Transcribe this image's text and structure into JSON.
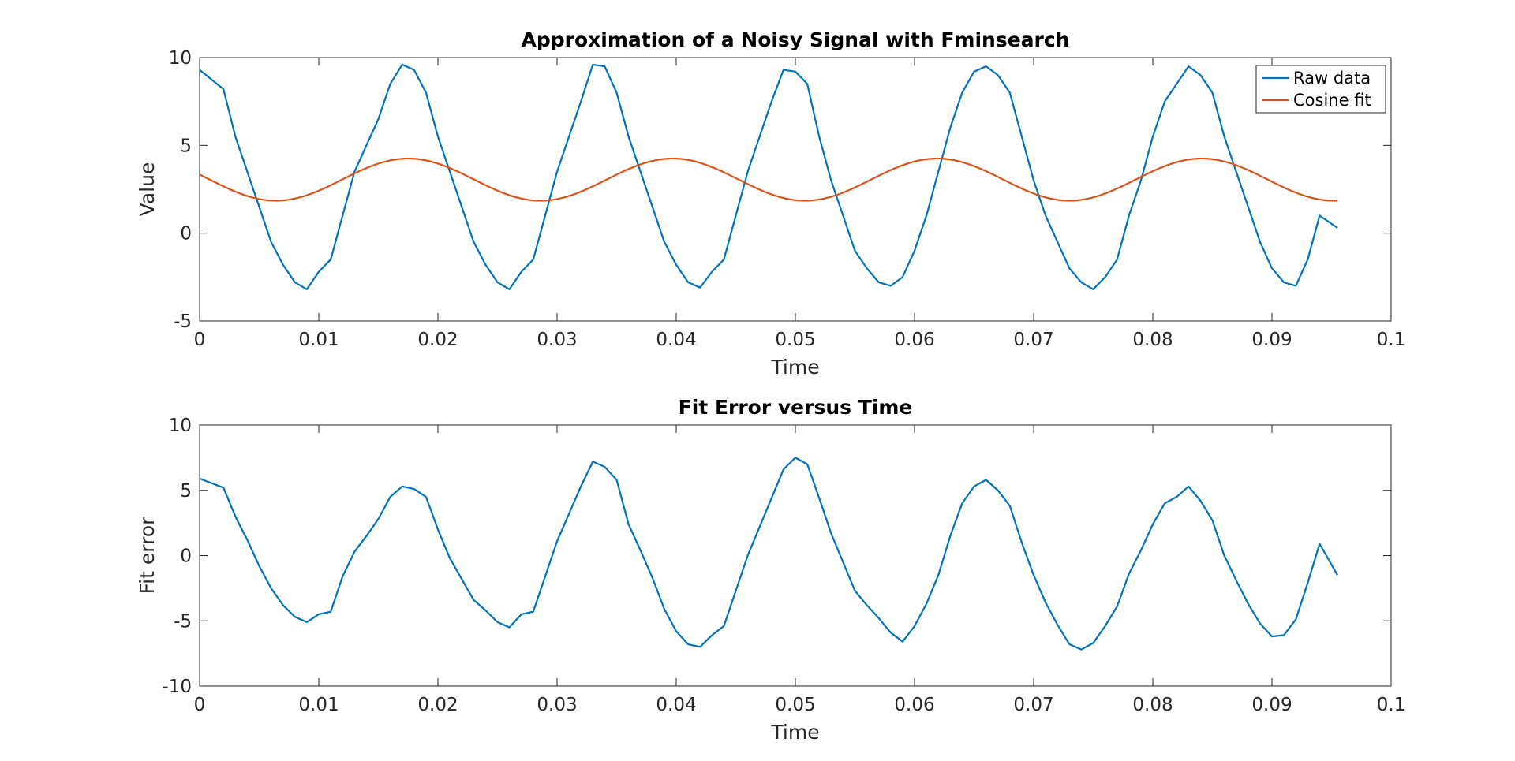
{
  "chart_data": [
    {
      "type": "line",
      "title": "Approximation of a Noisy Signal with Fminsearch",
      "xlabel": "Time",
      "ylabel": "Value",
      "xlim": [
        0,
        0.1
      ],
      "ylim": [
        -5,
        10
      ],
      "xticks": [
        0,
        0.01,
        0.02,
        0.03,
        0.04,
        0.05,
        0.06,
        0.07,
        0.08,
        0.09,
        0.1
      ],
      "xtick_labels": [
        "0",
        "0.01",
        "0.02",
        "0.03",
        "0.04",
        "0.05",
        "0.06",
        "0.07",
        "0.08",
        "0.09",
        "0.1"
      ],
      "yticks": [
        -5,
        0,
        5,
        10
      ],
      "ytick_labels": [
        "-5",
        "0",
        "5",
        "10"
      ],
      "grid": false,
      "legend": "top-right",
      "series": [
        {
          "name": "Raw data",
          "color": "#0072BD",
          "x": [
            0,
            0.002,
            0.003,
            0.004,
            0.005,
            0.006,
            0.007,
            0.008,
            0.009,
            0.01,
            0.011,
            0.012,
            0.013,
            0.014,
            0.015,
            0.016,
            0.017,
            0.018,
            0.019,
            0.02,
            0.021,
            0.022,
            0.023,
            0.024,
            0.025,
            0.026,
            0.027,
            0.028,
            0.029,
            0.03,
            0.031,
            0.032,
            0.033,
            0.034,
            0.035,
            0.036,
            0.037,
            0.038,
            0.039,
            0.04,
            0.041,
            0.042,
            0.043,
            0.044,
            0.045,
            0.046,
            0.047,
            0.048,
            0.049,
            0.05,
            0.051,
            0.052,
            0.053,
            0.054,
            0.055,
            0.056,
            0.057,
            0.058,
            0.059,
            0.06,
            0.061,
            0.062,
            0.063,
            0.064,
            0.065,
            0.066,
            0.067,
            0.068,
            0.069,
            0.07,
            0.071,
            0.072,
            0.073,
            0.074,
            0.075,
            0.076,
            0.077,
            0.078,
            0.079,
            0.08,
            0.081,
            0.082,
            0.083,
            0.084,
            0.085,
            0.086,
            0.087,
            0.088,
            0.089,
            0.09,
            0.091,
            0.092,
            0.093,
            0.094,
            0.0955
          ],
          "values": [
            9.3,
            8.2,
            5.5,
            3.5,
            1.5,
            -0.5,
            -1.8,
            -2.8,
            -3.2,
            -2.2,
            -1.5,
            1.0,
            3.5,
            5.0,
            6.5,
            8.5,
            9.6,
            9.3,
            8.0,
            5.5,
            3.5,
            1.5,
            -0.5,
            -1.8,
            -2.8,
            -3.2,
            -2.2,
            -1.5,
            1.0,
            3.5,
            5.5,
            7.5,
            9.6,
            9.5,
            8.0,
            5.5,
            3.5,
            1.5,
            -0.5,
            -1.8,
            -2.8,
            -3.1,
            -2.2,
            -1.5,
            1.0,
            3.5,
            5.5,
            7.5,
            9.3,
            9.2,
            8.5,
            5.5,
            3.0,
            1.0,
            -1.0,
            -2.0,
            -2.8,
            -3.0,
            -2.5,
            -1.0,
            1.0,
            3.5,
            6.0,
            8.0,
            9.2,
            9.5,
            9.0,
            8.0,
            5.5,
            3.0,
            1.0,
            -0.5,
            -2.0,
            -2.8,
            -3.2,
            -2.5,
            -1.5,
            1.0,
            3.0,
            5.5,
            7.5,
            8.5,
            9.5,
            9.0,
            8.0,
            5.5,
            3.5,
            1.5,
            -0.5,
            -2.0,
            -2.8,
            -3.0,
            -1.5,
            1.0,
            0.3
          ]
        },
        {
          "name": "Cosine fit",
          "color": "#D95319",
          "model": {
            "offset": 3.05,
            "amplitude": 1.2,
            "period": 0.0222,
            "peak_time": 0.0175
          },
          "x_range": [
            0,
            0.0955
          ]
        }
      ]
    },
    {
      "type": "line",
      "title": "Fit Error versus Time",
      "xlabel": "Time",
      "ylabel": "Fit error",
      "xlim": [
        0,
        0.1
      ],
      "ylim": [
        -10,
        10
      ],
      "xticks": [
        0,
        0.01,
        0.02,
        0.03,
        0.04,
        0.05,
        0.06,
        0.07,
        0.08,
        0.09,
        0.1
      ],
      "xtick_labels": [
        "0",
        "0.01",
        "0.02",
        "0.03",
        "0.04",
        "0.05",
        "0.06",
        "0.07",
        "0.08",
        "0.09",
        "0.1"
      ],
      "yticks": [
        -10,
        -5,
        0,
        5,
        10
      ],
      "ytick_labels": [
        "-10",
        "-5",
        "0",
        "5",
        "10"
      ],
      "grid": false,
      "series": [
        {
          "color": "#0072BD",
          "x": [
            0,
            0.002,
            0.003,
            0.004,
            0.005,
            0.006,
            0.007,
            0.008,
            0.009,
            0.01,
            0.011,
            0.012,
            0.013,
            0.014,
            0.015,
            0.016,
            0.017,
            0.018,
            0.019,
            0.02,
            0.021,
            0.022,
            0.023,
            0.024,
            0.025,
            0.026,
            0.027,
            0.028,
            0.029,
            0.03,
            0.031,
            0.032,
            0.033,
            0.034,
            0.035,
            0.036,
            0.037,
            0.038,
            0.039,
            0.04,
            0.041,
            0.042,
            0.043,
            0.044,
            0.045,
            0.046,
            0.047,
            0.048,
            0.049,
            0.05,
            0.051,
            0.052,
            0.053,
            0.054,
            0.055,
            0.056,
            0.057,
            0.058,
            0.059,
            0.06,
            0.061,
            0.062,
            0.063,
            0.064,
            0.065,
            0.066,
            0.067,
            0.068,
            0.069,
            0.07,
            0.071,
            0.072,
            0.073,
            0.074,
            0.075,
            0.076,
            0.077,
            0.078,
            0.079,
            0.08,
            0.081,
            0.082,
            0.083,
            0.084,
            0.085,
            0.086,
            0.087,
            0.088,
            0.089,
            0.09,
            0.091,
            0.092,
            0.093,
            0.094,
            0.0955
          ],
          "values": [
            5.9,
            5.2,
            3.0,
            1.2,
            -0.8,
            -2.5,
            -3.8,
            -4.7,
            -5.1,
            -4.5,
            -4.3,
            -1.6,
            0.3,
            1.5,
            2.8,
            4.5,
            5.3,
            5.1,
            4.5,
            2.0,
            -0.2,
            -1.8,
            -3.4,
            -4.2,
            -5.1,
            -5.5,
            -4.5,
            -4.3,
            -1.6,
            1.1,
            3.2,
            5.3,
            7.2,
            6.8,
            5.8,
            2.4,
            0.4,
            -1.7,
            -4.1,
            -5.8,
            -6.8,
            -7.0,
            -6.1,
            -5.4,
            -2.7,
            0.0,
            2.2,
            4.4,
            6.6,
            7.5,
            7.0,
            4.4,
            1.7,
            -0.5,
            -2.7,
            -3.8,
            -4.8,
            -5.9,
            -6.6,
            -5.4,
            -3.7,
            -1.5,
            1.5,
            4.0,
            5.3,
            5.8,
            5.0,
            3.8,
            1.0,
            -1.5,
            -3.6,
            -5.3,
            -6.8,
            -7.2,
            -6.7,
            -5.4,
            -3.9,
            -1.4,
            0.4,
            2.4,
            4.0,
            4.5,
            5.3,
            4.2,
            2.7,
            0.0,
            -1.9,
            -3.7,
            -5.2,
            -6.2,
            -6.1,
            -4.9,
            -2.1,
            0.9,
            -1.5
          ]
        }
      ]
    }
  ]
}
